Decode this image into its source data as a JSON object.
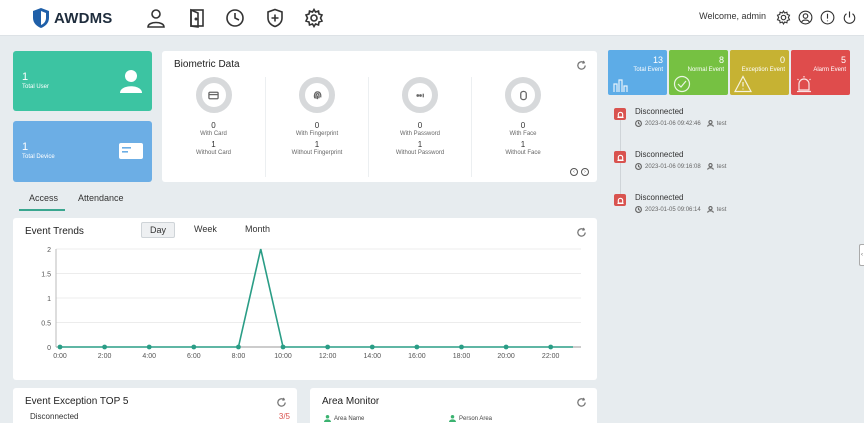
{
  "app": {
    "name": "AWDMS"
  },
  "header": {
    "welcome": "Welcome, admin"
  },
  "stats": {
    "total_user": {
      "value": "1",
      "label": "Total User"
    },
    "total_device": {
      "value": "1",
      "label": "Total Device"
    }
  },
  "biometric": {
    "title": "Biometric Data",
    "items": [
      {
        "icon": "card-icon",
        "with_value": "0",
        "with_label": "With Card",
        "without_value": "1",
        "without_label": "Without Card"
      },
      {
        "icon": "fingerprint-icon",
        "with_value": "0",
        "with_label": "With Fingerprint",
        "without_value": "1",
        "without_label": "Without Fingerprint"
      },
      {
        "icon": "password-icon",
        "with_value": "0",
        "with_label": "With Password",
        "without_value": "1",
        "without_label": "Without Password"
      },
      {
        "icon": "face-icon",
        "with_value": "0",
        "with_label": "With Face",
        "without_value": "1",
        "without_label": "Without Face"
      }
    ]
  },
  "tabs": [
    {
      "label": "Access"
    },
    {
      "label": "Attendance"
    }
  ],
  "trends": {
    "title": "Event Trends",
    "segments": [
      {
        "label": "Day"
      },
      {
        "label": "Week"
      },
      {
        "label": "Month"
      }
    ]
  },
  "chart_data": {
    "type": "line",
    "title": "",
    "xlabel": "",
    "ylabel": "",
    "x": [
      "0:00",
      "1:00",
      "2:00",
      "3:00",
      "4:00",
      "5:00",
      "6:00",
      "7:00",
      "8:00",
      "9:00",
      "10:00",
      "11:00",
      "12:00",
      "13:00",
      "14:00",
      "15:00",
      "16:00",
      "17:00",
      "18:00",
      "19:00",
      "20:00",
      "21:00",
      "22:00",
      "23:00"
    ],
    "x_tick_labels": [
      "0:00",
      "2:00",
      "4:00",
      "6:00",
      "8:00",
      "10:00",
      "12:00",
      "14:00",
      "16:00",
      "18:00",
      "20:00",
      "22:00"
    ],
    "y_tick_labels": [
      "0",
      "0.5",
      "1",
      "1.5",
      "2"
    ],
    "series": [
      {
        "values": [
          0,
          0,
          0,
          0,
          0,
          0,
          0,
          0,
          0,
          2,
          0,
          0,
          0,
          0,
          0,
          0,
          0,
          0,
          0,
          0,
          0,
          0,
          0,
          0
        ]
      }
    ],
    "ylim": [
      0,
      2
    ],
    "grid": true,
    "color": "#2a9d86"
  },
  "exceptions": {
    "title": "Event Exception TOP 5",
    "rows": [
      {
        "name": "Disconnected",
        "value": "3/5"
      }
    ]
  },
  "area": {
    "title": "Area Monitor",
    "col1": "Area Name",
    "col2": "Person Area"
  },
  "events": {
    "total": {
      "value": "13",
      "label": "Total Event",
      "color": "#5dace7"
    },
    "normal": {
      "value": "8",
      "label": "Normal Event",
      "color": "#76c142"
    },
    "exception": {
      "value": "0",
      "label": "Exception Event",
      "color": "#c6b233"
    },
    "alarm": {
      "value": "5",
      "label": "Alarm Event",
      "color": "#df4c4c"
    }
  },
  "timeline": [
    {
      "title": "Disconnected",
      "time": "2023-01-06 09:42:46",
      "user": "test"
    },
    {
      "title": "Disconnected",
      "time": "2023-01-06 09:16:08",
      "user": "test"
    },
    {
      "title": "Disconnected",
      "time": "2023-01-05 09:06:14",
      "user": "test"
    }
  ]
}
